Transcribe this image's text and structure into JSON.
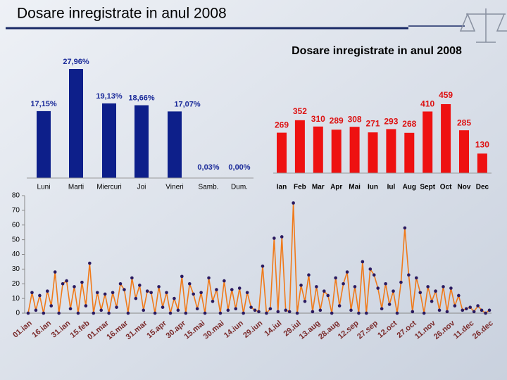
{
  "header": {
    "title": "Dosare inregistrate in anul 2008"
  },
  "chart_data": [
    {
      "type": "bar",
      "color": "#0d1f8a",
      "categories": [
        "Luni",
        "Marti",
        "Miercuri",
        "Joi",
        "Vineri",
        "Samb.",
        "Dum."
      ],
      "values": [
        17.15,
        27.96,
        19.13,
        18.66,
        17.07,
        0.03,
        0.0
      ],
      "value_labels": [
        "17,15%",
        "27,96%",
        "19,13%",
        "18,66%",
        "17,07%",
        "0,03%",
        "0,00%"
      ]
    },
    {
      "type": "bar",
      "color": "#ee1111",
      "title": "Dosare inregistrate in anul 2008",
      "categories": [
        "Ian",
        "Feb",
        "Mar",
        "Apr",
        "Mai",
        "Iun",
        "Iul",
        "Aug",
        "Sept",
        "Oct",
        "Nov",
        "Dec"
      ],
      "values": [
        269,
        352,
        310,
        289,
        308,
        271,
        293,
        268,
        410,
        459,
        285,
        130
      ]
    },
    {
      "type": "line",
      "color": "#f07a1a",
      "marker_color": "#2a1a60",
      "ylim": [
        0,
        80
      ],
      "yticks": [
        0,
        10,
        20,
        30,
        40,
        50,
        60,
        70,
        80
      ],
      "categories": [
        "01.ian",
        null,
        null,
        null,
        null,
        "16.ian",
        null,
        null,
        null,
        null,
        "31.ian",
        null,
        null,
        null,
        null,
        "15.feb",
        null,
        null,
        null,
        null,
        "01.mar",
        null,
        null,
        null,
        null,
        "16.mar",
        null,
        null,
        null,
        null,
        "31.mar",
        null,
        null,
        null,
        null,
        "15.apr",
        null,
        null,
        null,
        null,
        "30.apr",
        null,
        null,
        null,
        null,
        "15.mai",
        null,
        null,
        null,
        null,
        "30.mai",
        null,
        null,
        null,
        null,
        "14.iun",
        null,
        null,
        null,
        null,
        "29.iun",
        null,
        null,
        null,
        null,
        "14.iul",
        null,
        null,
        null,
        null,
        "29.iul",
        null,
        null,
        null,
        null,
        "13.aug",
        null,
        null,
        null,
        null,
        "28.aug",
        null,
        null,
        null,
        null,
        "12.sep",
        null,
        null,
        null,
        null,
        "27.sep",
        null,
        null,
        null,
        null,
        "12.oct",
        null,
        null,
        null,
        null,
        "27.oct",
        null,
        null,
        null,
        null,
        "11.nov",
        null,
        null,
        null,
        null,
        "26.nov",
        null,
        null,
        null,
        null,
        "11.dec",
        null,
        null,
        null,
        null,
        "26.dec"
      ],
      "values": [
        0,
        14,
        2,
        12,
        0,
        15,
        5,
        28,
        0,
        20,
        22,
        3,
        18,
        0,
        21,
        5,
        34,
        0,
        14,
        2,
        13,
        0,
        14,
        4,
        20,
        16,
        0,
        24,
        10,
        19,
        2,
        15,
        14,
        0,
        18,
        4,
        14,
        0,
        10,
        2,
        25,
        0,
        20,
        13,
        3,
        14,
        0,
        24,
        8,
        16,
        0,
        22,
        2,
        16,
        3,
        17,
        0,
        14,
        4,
        2,
        1,
        32,
        0,
        3,
        51,
        1,
        52,
        2,
        1,
        75,
        0,
        19,
        8,
        26,
        1,
        18,
        2,
        15,
        12,
        0,
        24,
        5,
        20,
        28,
        2,
        18,
        0,
        35,
        0,
        30,
        26,
        17,
        3,
        20,
        6,
        15,
        0,
        21,
        58,
        26,
        1,
        24,
        14,
        0,
        18,
        8,
        15,
        2,
        18,
        1,
        17,
        5,
        12,
        2,
        3,
        4,
        1,
        5,
        2,
        0,
        2
      ]
    }
  ]
}
